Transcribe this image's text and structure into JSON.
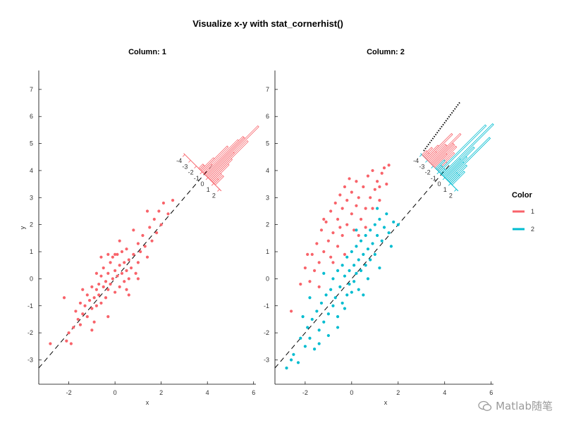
{
  "figure_title": "Visualize x-y with stat_cornerhist()",
  "legend": {
    "title": "Color",
    "entries": [
      {
        "label": "1",
        "color": "#f8636a"
      },
      {
        "label": "2",
        "color": "#00bcd0"
      }
    ]
  },
  "watermark": "Matlab随笔",
  "chart_data": [
    {
      "type": "scatter",
      "title": "Column: 1",
      "xlabel": "x",
      "ylabel": "y",
      "xlim": [
        -3.3,
        6.1
      ],
      "ylim": [
        -3.9,
        7.7
      ],
      "xticks": [
        -2,
        0,
        2,
        4,
        6
      ],
      "yticks": [
        -3,
        -2,
        -1,
        0,
        1,
        2,
        3,
        4,
        5,
        6,
        7
      ],
      "reference_line": {
        "slope": 1,
        "intercept": 0,
        "style": "dashed"
      },
      "series": [
        {
          "name": "1",
          "color": "#f8636a",
          "points": [
            [
              -2.2,
              -0.7
            ],
            [
              -2.8,
              -2.4
            ],
            [
              -2.1,
              -2.3
            ],
            [
              -2.0,
              -2.0
            ],
            [
              -1.8,
              -1.8
            ],
            [
              -1.7,
              -1.2
            ],
            [
              -1.6,
              -1.5
            ],
            [
              -1.5,
              -1.7
            ],
            [
              -1.5,
              -0.9
            ],
            [
              -1.4,
              -1.3
            ],
            [
              -1.3,
              -1.0
            ],
            [
              -1.2,
              -0.6
            ],
            [
              -1.2,
              -1.4
            ],
            [
              -1.1,
              -0.8
            ],
            [
              -1.0,
              -1.1
            ],
            [
              -1.0,
              -0.3
            ],
            [
              -0.9,
              -0.7
            ],
            [
              -0.9,
              -1.6
            ],
            [
              -0.8,
              -0.4
            ],
            [
              -0.8,
              -1.0
            ],
            [
              -0.7,
              -0.2
            ],
            [
              -0.7,
              -0.6
            ],
            [
              -0.6,
              0.1
            ],
            [
              -0.6,
              -0.9
            ],
            [
              -0.5,
              -0.3
            ],
            [
              -0.5,
              0.4
            ],
            [
              -0.4,
              -0.1
            ],
            [
              -0.4,
              -0.7
            ],
            [
              -0.3,
              0.2
            ],
            [
              -0.3,
              -0.4
            ],
            [
              -0.2,
              0.6
            ],
            [
              -0.2,
              -0.2
            ],
            [
              -0.1,
              0.0
            ],
            [
              -0.1,
              0.8
            ],
            [
              0.0,
              -0.5
            ],
            [
              0.0,
              0.3
            ],
            [
              0.1,
              0.1
            ],
            [
              0.1,
              0.9
            ],
            [
              0.2,
              -0.3
            ],
            [
              0.2,
              0.5
            ],
            [
              0.3,
              0.2
            ],
            [
              0.3,
              1.0
            ],
            [
              0.4,
              -0.1
            ],
            [
              0.4,
              0.6
            ],
            [
              0.5,
              0.3
            ],
            [
              0.5,
              1.1
            ],
            [
              0.6,
              0.0
            ],
            [
              0.6,
              0.7
            ],
            [
              0.7,
              0.4
            ],
            [
              0.8,
              0.9
            ],
            [
              0.9,
              0.2
            ],
            [
              1.0,
              1.3
            ],
            [
              1.0,
              0.6
            ],
            [
              1.1,
              1.0
            ],
            [
              1.2,
              1.6
            ],
            [
              1.3,
              1.2
            ],
            [
              1.4,
              0.8
            ],
            [
              1.5,
              1.9
            ],
            [
              1.6,
              1.4
            ],
            [
              1.7,
              2.2
            ],
            [
              1.8,
              1.7
            ],
            [
              1.9,
              2.5
            ],
            [
              2.0,
              2.0
            ],
            [
              2.1,
              2.8
            ],
            [
              2.3,
              2.4
            ],
            [
              2.5,
              2.9
            ],
            [
              -0.6,
              0.8
            ],
            [
              -0.3,
              0.9
            ],
            [
              0.0,
              0.9
            ],
            [
              -1.9,
              -2.4
            ],
            [
              -1.0,
              -1.9
            ],
            [
              -0.3,
              -1.4
            ],
            [
              0.5,
              -0.4
            ],
            [
              1.0,
              0.0
            ],
            [
              -0.8,
              0.2
            ],
            [
              0.2,
              1.4
            ],
            [
              0.8,
              1.8
            ],
            [
              1.4,
              2.5
            ],
            [
              -1.4,
              -0.4
            ],
            [
              0.6,
              -0.6
            ]
          ]
        }
      ],
      "corner_hist": {
        "series": [
          "1"
        ],
        "axis_ticks": [
          -4,
          -3,
          -2,
          -1,
          0,
          1,
          2
        ]
      }
    },
    {
      "type": "scatter",
      "title": "Column: 2",
      "xlabel": "x",
      "ylabel": "",
      "xlim": [
        -3.3,
        6.1
      ],
      "ylim": [
        -3.9,
        7.7
      ],
      "xticks": [
        -2,
        0,
        2,
        4,
        6
      ],
      "yticks": [
        -3,
        -2,
        -1,
        0,
        1,
        2,
        3,
        4,
        5,
        6,
        7
      ],
      "reference_line": {
        "slope": 1,
        "intercept": 0,
        "style": "dashed"
      },
      "series": [
        {
          "name": "1",
          "color": "#f8636a",
          "points": [
            [
              -2.6,
              -1.2
            ],
            [
              -2.2,
              -0.2
            ],
            [
              -2.0,
              0.4
            ],
            [
              -1.8,
              -0.1
            ],
            [
              -1.7,
              0.9
            ],
            [
              -1.6,
              0.3
            ],
            [
              -1.5,
              1.3
            ],
            [
              -1.4,
              0.6
            ],
            [
              -1.3,
              1.8
            ],
            [
              -1.2,
              1.0
            ],
            [
              -1.1,
              2.1
            ],
            [
              -1.0,
              1.4
            ],
            [
              -0.9,
              2.5
            ],
            [
              -0.9,
              0.8
            ],
            [
              -0.8,
              1.7
            ],
            [
              -0.7,
              2.8
            ],
            [
              -0.6,
              1.2
            ],
            [
              -0.6,
              2.2
            ],
            [
              -0.5,
              3.1
            ],
            [
              -0.4,
              1.6
            ],
            [
              -0.4,
              2.6
            ],
            [
              -0.3,
              3.4
            ],
            [
              -0.2,
              2.0
            ],
            [
              -0.2,
              2.9
            ],
            [
              -0.1,
              3.7
            ],
            [
              0.0,
              2.4
            ],
            [
              0.0,
              3.2
            ],
            [
              0.1,
              1.8
            ],
            [
              0.2,
              2.7
            ],
            [
              0.2,
              3.6
            ],
            [
              0.3,
              3.0
            ],
            [
              0.4,
              2.2
            ],
            [
              0.5,
              3.4
            ],
            [
              0.6,
              2.6
            ],
            [
              0.7,
              3.8
            ],
            [
              0.8,
              3.0
            ],
            [
              0.9,
              4.0
            ],
            [
              1.0,
              3.3
            ],
            [
              1.1,
              3.6
            ],
            [
              1.2,
              2.9
            ],
            [
              1.3,
              3.9
            ],
            [
              1.4,
              4.1
            ],
            [
              1.5,
              3.5
            ],
            [
              1.6,
              4.2
            ],
            [
              -1.4,
              -0.3
            ],
            [
              -1.9,
              0.9
            ],
            [
              -0.8,
              0.6
            ],
            [
              0.3,
              1.6
            ],
            [
              -0.5,
              1.9
            ],
            [
              0.6,
              1.9
            ],
            [
              -1.2,
              2.2
            ],
            [
              0.9,
              2.6
            ],
            [
              1.2,
              3.4
            ],
            [
              -0.3,
              0.9
            ]
          ]
        },
        {
          "name": "2",
          "color": "#00bcd0",
          "points": [
            [
              -2.8,
              -3.3
            ],
            [
              -2.5,
              -2.8
            ],
            [
              -2.3,
              -3.1
            ],
            [
              -2.2,
              -2.2
            ],
            [
              -2.0,
              -2.5
            ],
            [
              -1.9,
              -1.8
            ],
            [
              -1.8,
              -2.2
            ],
            [
              -1.7,
              -1.5
            ],
            [
              -1.6,
              -2.6
            ],
            [
              -1.5,
              -1.2
            ],
            [
              -1.4,
              -1.9
            ],
            [
              -1.3,
              -0.9
            ],
            [
              -1.2,
              -1.6
            ],
            [
              -1.1,
              -0.6
            ],
            [
              -1.0,
              -1.3
            ],
            [
              -1.0,
              -2.1
            ],
            [
              -0.9,
              -0.4
            ],
            [
              -0.8,
              -1.0
            ],
            [
              -0.8,
              0.0
            ],
            [
              -0.7,
              -0.7
            ],
            [
              -0.6,
              0.3
            ],
            [
              -0.6,
              -1.4
            ],
            [
              -0.5,
              -0.3
            ],
            [
              -0.4,
              0.5
            ],
            [
              -0.4,
              -0.9
            ],
            [
              -0.3,
              0.1
            ],
            [
              -0.2,
              0.8
            ],
            [
              -0.2,
              -0.6
            ],
            [
              -0.1,
              0.3
            ],
            [
              -0.1,
              -0.2
            ],
            [
              0.0,
              1.0
            ],
            [
              0.0,
              -0.5
            ],
            [
              0.1,
              0.5
            ],
            [
              0.1,
              -0.1
            ],
            [
              0.2,
              1.2
            ],
            [
              0.2,
              0.2
            ],
            [
              0.3,
              0.7
            ],
            [
              0.3,
              -0.4
            ],
            [
              0.4,
              1.4
            ],
            [
              0.4,
              0.3
            ],
            [
              0.5,
              0.9
            ],
            [
              0.6,
              1.6
            ],
            [
              0.6,
              0.5
            ],
            [
              0.7,
              1.1
            ],
            [
              0.8,
              1.8
            ],
            [
              0.8,
              0.7
            ],
            [
              0.9,
              1.3
            ],
            [
              1.0,
              2.0
            ],
            [
              1.0,
              0.9
            ],
            [
              1.1,
              1.6
            ],
            [
              1.2,
              2.2
            ],
            [
              1.3,
              1.4
            ],
            [
              1.4,
              1.9
            ],
            [
              1.5,
              2.4
            ],
            [
              1.6,
              1.7
            ],
            [
              1.8,
              2.1
            ],
            [
              2.0,
              2.0
            ],
            [
              -2.6,
              -3.0
            ],
            [
              -1.4,
              -2.4
            ],
            [
              -0.6,
              -1.8
            ],
            [
              0.5,
              -0.6
            ],
            [
              1.2,
              0.4
            ],
            [
              -1.8,
              -0.7
            ],
            [
              -1.2,
              0.2
            ],
            [
              0.2,
              1.8
            ],
            [
              1.1,
              2.6
            ],
            [
              -0.3,
              -1.1
            ],
            [
              0.7,
              0.0
            ],
            [
              -2.1,
              -1.4
            ],
            [
              1.7,
              1.2
            ]
          ]
        }
      ],
      "corner_hist": {
        "series": [
          "1",
          "2"
        ],
        "axis_ticks": [
          -4,
          -3,
          -2,
          -1,
          0,
          1,
          2
        ]
      }
    }
  ]
}
